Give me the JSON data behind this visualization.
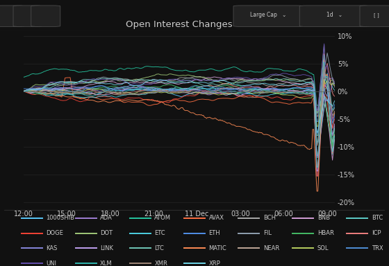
{
  "title": "Open Interest Changes",
  "bg_color": "#111111",
  "plot_bg_color": "#111111",
  "toolbar_color": "#1a1a1a",
  "border_color": "#333333",
  "text_color": "#cccccc",
  "grid_color": "#2a2a2a",
  "zero_line_color": "#555555",
  "ylim": [
    -21,
    11
  ],
  "yticks": [
    -20,
    -15,
    -10,
    -5,
    0,
    5,
    10
  ],
  "xtick_labels": [
    "12:00",
    "15:00",
    "18:00",
    "21:00",
    "11 Dec",
    "03:00",
    "06:00",
    "09:00"
  ],
  "series": [
    {
      "name": "1000SHIB",
      "color": "#5bc8fa"
    },
    {
      "name": "ADA",
      "color": "#a07fd4"
    },
    {
      "name": "ATOM",
      "color": "#26c6a0"
    },
    {
      "name": "AVAX",
      "color": "#ff7043"
    },
    {
      "name": "BCH",
      "color": "#aaaaaa"
    },
    {
      "name": "BNB",
      "color": "#d4a0d8"
    },
    {
      "name": "BTC",
      "color": "#5fcfca"
    },
    {
      "name": "DOGE",
      "color": "#f44336"
    },
    {
      "name": "DOT",
      "color": "#a0c878"
    },
    {
      "name": "ETC",
      "color": "#4dd0e1"
    },
    {
      "name": "ETH",
      "color": "#5090e8"
    },
    {
      "name": "FIL",
      "color": "#90a0b0"
    },
    {
      "name": "HBAR",
      "color": "#44bb66"
    },
    {
      "name": "ICP",
      "color": "#f08080"
    },
    {
      "name": "KAS",
      "color": "#8888dd"
    },
    {
      "name": "LINK",
      "color": "#c0a0f0"
    },
    {
      "name": "LTC",
      "color": "#70c8b8"
    },
    {
      "name": "MATIC",
      "color": "#ff8c55"
    },
    {
      "name": "NEAR",
      "color": "#c0a898"
    },
    {
      "name": "SOL",
      "color": "#b8d060"
    },
    {
      "name": "TRX",
      "color": "#5090d8"
    },
    {
      "name": "UNI",
      "color": "#6650b0"
    },
    {
      "name": "XLM",
      "color": "#30b8b0"
    },
    {
      "name": "XMR",
      "color": "#a08878"
    },
    {
      "name": "XRP",
      "color": "#70d8ea"
    }
  ],
  "legend_order": [
    "1000SHIB",
    "ADA",
    "ATOM",
    "AVAX",
    "BCH",
    "BNB",
    "BTC",
    "DOGE",
    "DOT",
    "ETC",
    "ETH",
    "FIL",
    "HBAR",
    "ICP",
    "KAS",
    "LINK",
    "LTC",
    "MATIC",
    "NEAR",
    "SOL",
    "TRX",
    "UNI",
    "XLM",
    "XMR",
    "XRP"
  ],
  "n_points": 300
}
